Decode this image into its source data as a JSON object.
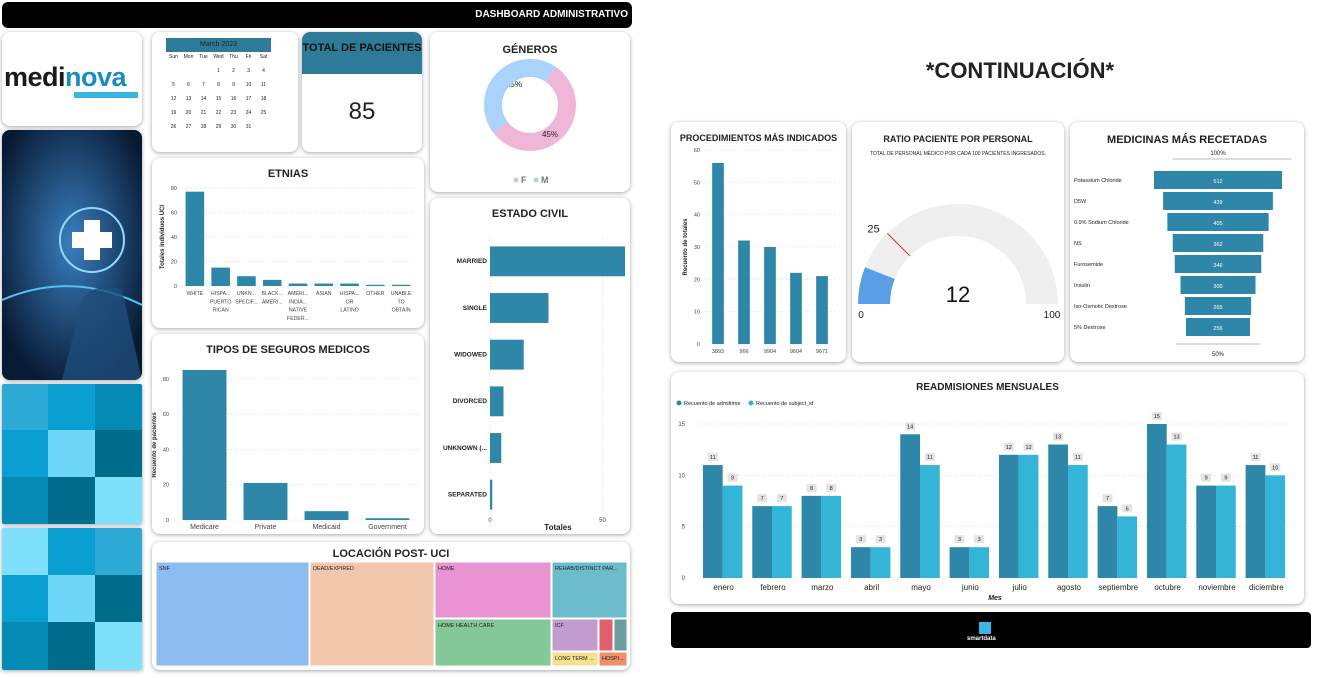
{
  "header": {
    "title": "DASHBOARD ADMINISTRATIVO"
  },
  "continuation_title": "*CONTINUACIÓN*",
  "logo": {
    "part1": "medi",
    "part2": "nova"
  },
  "footer": {
    "brand": "smartdata"
  },
  "calendar": {
    "month": "March 2023",
    "weekdays": [
      "Sun",
      "Mon",
      "Tue",
      "Wed",
      "Thu",
      "Fri",
      "Sat"
    ],
    "days": [
      "",
      "",
      "",
      "1",
      "2",
      "3",
      "4",
      "5",
      "6",
      "7",
      "8",
      "9",
      "10",
      "11",
      "12",
      "13",
      "14",
      "15",
      "16",
      "17",
      "18",
      "19",
      "20",
      "21",
      "22",
      "23",
      "24",
      "25",
      "26",
      "27",
      "28",
      "29",
      "30",
      "31",
      ""
    ]
  },
  "total": {
    "title": "TOTAL DE PACIENTES",
    "value": "85"
  },
  "colors": {
    "bar": "#2e86a8",
    "bar2": "#34b4d6",
    "gauge": "#5a9ee8",
    "gauge_bg": "#efefef"
  },
  "chart_data": [
    {
      "id": "generos",
      "type": "pie",
      "title": "GÉNEROS",
      "categories": [
        "F",
        "M"
      ],
      "values": [
        55,
        45
      ],
      "labels": [
        "55%",
        "45%"
      ],
      "colors": [
        "#f0b6d8",
        "#a9d3fb"
      ]
    },
    {
      "id": "etnias",
      "type": "bar",
      "title": "ETNIAS",
      "ylabel": "Totales individuos UCI",
      "ylim": [
        0,
        80
      ],
      "yticks": [
        0,
        20,
        40,
        60,
        80
      ],
      "categories": [
        "WHITE",
        "HISPA... PUERTO RICAN",
        "UNKN... SPECIF...",
        "BLACK... AMERI...",
        "AMERI... INDIA... NATIVE FEDER...",
        "ASIAN",
        "HISPA... OR LATINO",
        "OTHER",
        "UNABLE TO OBTAIN"
      ],
      "values": [
        77,
        15,
        8,
        5,
        2,
        2,
        2,
        1,
        1
      ]
    },
    {
      "id": "seguros",
      "type": "bar",
      "title": "TIPOS DE SEGUROS MEDICOS",
      "ylabel": "Recuento de pacientes",
      "ylim": [
        0,
        85
      ],
      "yticks": [
        0,
        20,
        40,
        60,
        80
      ],
      "categories": [
        "Medicare",
        "Private",
        "Medicaid",
        "Government"
      ],
      "values": [
        85,
        21,
        5,
        1
      ]
    },
    {
      "id": "estado_civil",
      "type": "bar",
      "title": "ESTADO CIVIL",
      "orientation": "horizontal",
      "xlabel": "Totales",
      "xlim": [
        0,
        60
      ],
      "xticks": [
        0,
        50
      ],
      "categories": [
        "MARRIED",
        "SINGLE",
        "WIDOWED",
        "DIVORCED",
        "UNKNOWN (...",
        "SEPARATED"
      ],
      "values": [
        60,
        26,
        15,
        6,
        5,
        1
      ]
    },
    {
      "id": "locacion",
      "type": "treemap",
      "title": "LOCACIÓN POST- UCI",
      "categories": [
        "SNF",
        "DEAD/EXPIRED",
        "HOME",
        "REHAB/DISTINCT PAR...",
        "HOME HEALTH CARE",
        "ICF",
        "LONG TERM ...",
        "HOSPI..."
      ],
      "colors": [
        "#8dbdf0",
        "#f3c7ad",
        "#ea93d2",
        "#6dbccc",
        "#85c898",
        "#c39ccf",
        "#f5e08f",
        "#f09068",
        "#e06070",
        "#6a9ea0"
      ]
    },
    {
      "id": "procedimientos",
      "type": "bar",
      "title": "PROCEDIMIENTOS MÁS INDICADOS",
      "ylabel": "Recuento de totales",
      "ylim": [
        0,
        60
      ],
      "yticks": [
        0,
        10,
        20,
        30,
        40,
        50,
        60
      ],
      "categories": [
        "3893",
        "966",
        "9904",
        "9604",
        "9671"
      ],
      "values": [
        56,
        32,
        30,
        22,
        21
      ]
    },
    {
      "id": "ratio",
      "type": "gauge",
      "title": "RATIO PACIENTE POR PERSONAL",
      "subtitle": "TOTAL DE PERSONAL MÉDICO POR CADA 100 PACIENTES INGRESADOS.",
      "value": 12,
      "target": 25,
      "min": 0,
      "max": 100,
      "value_label": "12",
      "target_label": "25",
      "min_label": "0",
      "max_label": "100"
    },
    {
      "id": "medicinas",
      "type": "funnel",
      "title": "MEDICINAS MÁS RECETADAS",
      "top_label": "100%",
      "bottom_label": "50%",
      "categories": [
        "Potassium Chloride",
        "D5W",
        "0.9% Sodium Chloride",
        "NS",
        "Furosemide",
        "Insulin",
        "Iso-Osmotic Dextrose",
        "5% Dextrose"
      ],
      "values": [
        512,
        439,
        405,
        362,
        346,
        300,
        265,
        256
      ],
      "value_labels": [
        "512",
        "439",
        "405",
        "362",
        "346",
        "300",
        "265",
        "256"
      ]
    },
    {
      "id": "readmisiones",
      "type": "bar",
      "title": "READMISIONES MENSUALES",
      "xlabel": "Mes",
      "ylim": [
        0,
        15
      ],
      "yticks": [
        0,
        5,
        10,
        15
      ],
      "categories": [
        "enero",
        "febrero",
        "marzo",
        "abril",
        "mayo",
        "junio",
        "julio",
        "agosto",
        "septiembre",
        "octubre",
        "noviembre",
        "diciembre"
      ],
      "series": [
        {
          "name": "Recuento de admittime",
          "values": [
            11,
            7,
            8,
            3,
            14,
            3,
            12,
            13,
            7,
            15,
            9,
            11
          ]
        },
        {
          "name": "Recuento de subject_id",
          "values": [
            9,
            7,
            8,
            3,
            11,
            3,
            12,
            11,
            6,
            13,
            9,
            10
          ]
        }
      ]
    }
  ]
}
